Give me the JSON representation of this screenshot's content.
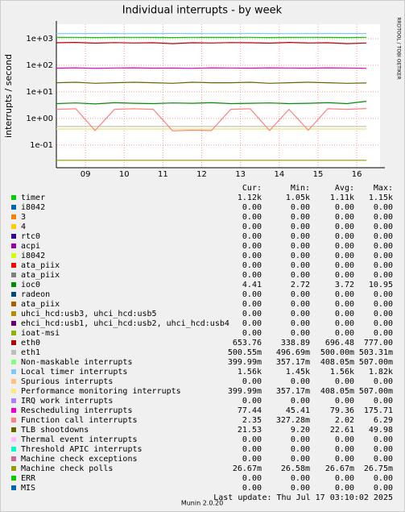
{
  "chart_data": {
    "type": "line",
    "title": "Individual interrupts - by week",
    "ylabel": "interrupts / second",
    "side_text": "RRDTOOL / TOBI OETIKER",
    "footer": "Munin 2.0.20",
    "last_update": "Last update:  Thu Jul 17 03:10:02 2025",
    "log_scale": true,
    "grid": true,
    "ylim": [
      0.014,
      3500
    ],
    "yticks": [
      {
        "value": 1000,
        "label": "1e+03"
      },
      {
        "value": 100,
        "label": "1e+02"
      },
      {
        "value": 10,
        "label": "1e+01"
      },
      {
        "value": 1,
        "label": "1e+00"
      },
      {
        "value": 0.1,
        "label": "1e-01"
      }
    ],
    "xlim": [
      8.25,
      16.6
    ],
    "xticks": [
      {
        "value": 9,
        "label": "09"
      },
      {
        "value": 10,
        "label": "10"
      },
      {
        "value": 11,
        "label": "11"
      },
      {
        "value": 12,
        "label": "12"
      },
      {
        "value": 13,
        "label": "13"
      },
      {
        "value": 14,
        "label": "14"
      },
      {
        "value": 15,
        "label": "15"
      },
      {
        "value": 16,
        "label": "16"
      }
    ],
    "x": [
      8.25,
      8.75,
      9.25,
      9.75,
      10.25,
      10.75,
      11.25,
      11.75,
      12.25,
      12.75,
      13.25,
      13.75,
      14.25,
      14.75,
      15.25,
      15.75,
      16.25
    ],
    "legend_columns": [
      "Cur:",
      "Min:",
      "Avg:",
      "Max:"
    ],
    "series": [
      {
        "name": "timer",
        "color": "#00cc00",
        "values": [
          1110,
          1120,
          1100,
          1110,
          1120,
          1110,
          1100,
          1120,
          1110,
          1110,
          1120,
          1100,
          1110,
          1120,
          1110,
          1100,
          1120
        ],
        "stats": [
          "1.12k",
          "1.05k",
          "1.11k",
          "1.15k"
        ]
      },
      {
        "name": "i8042",
        "color": "#0066b3",
        "stats": [
          "0.00",
          "0.00",
          "0.00",
          "0.00"
        ]
      },
      {
        "name": "3",
        "color": "#ff8000",
        "stats": [
          "0.00",
          "0.00",
          "0.00",
          "0.00"
        ]
      },
      {
        "name": "4",
        "color": "#ffcc00",
        "stats": [
          "0.00",
          "0.00",
          "0.00",
          "0.00"
        ]
      },
      {
        "name": "rtc0",
        "color": "#330099",
        "stats": [
          "0.00",
          "0.00",
          "0.00",
          "0.00"
        ]
      },
      {
        "name": "acpi",
        "color": "#990099",
        "stats": [
          "0.00",
          "0.00",
          "0.00",
          "0.00"
        ]
      },
      {
        "name": "i8042",
        "color": "#ccff00",
        "stats": [
          "0.00",
          "0.00",
          "0.00",
          "0.00"
        ]
      },
      {
        "name": "ata_piix",
        "color": "#ff0000",
        "stats": [
          "0.00",
          "0.00",
          "0.00",
          "0.00"
        ]
      },
      {
        "name": "ata_piix",
        "color": "#808080",
        "stats": [
          "0.00",
          "0.00",
          "0.00",
          "0.00"
        ]
      },
      {
        "name": "ioc0",
        "color": "#008f00",
        "values": [
          3.6,
          3.8,
          3.5,
          3.9,
          3.7,
          3.6,
          3.8,
          3.7,
          3.9,
          3.6,
          3.7,
          3.8,
          3.6,
          3.7,
          3.9,
          3.6,
          4.4
        ],
        "stats": [
          "4.41",
          "2.72",
          "3.72",
          "10.95"
        ]
      },
      {
        "name": "radeon",
        "color": "#00487d",
        "stats": [
          "0.00",
          "0.00",
          "0.00",
          "0.00"
        ]
      },
      {
        "name": "ata_piix",
        "color": "#b35a00",
        "stats": [
          "0.00",
          "0.00",
          "0.00",
          "0.00"
        ]
      },
      {
        "name": "uhci_hcd:usb3, uhci_hcd:usb5",
        "color": "#b38f00",
        "stats": [
          "0.00",
          "0.00",
          "0.00",
          "0.00"
        ]
      },
      {
        "name": "ehci_hcd:usb1, uhci_hcd:usb2, uhci_hcd:usb4",
        "color": "#6b006b",
        "stats": [
          "0.00",
          "0.00",
          "0.00",
          "0.00"
        ]
      },
      {
        "name": "ioat-msi",
        "color": "#8fb300",
        "stats": [
          "0.00",
          "0.00",
          "0.00",
          "0.00"
        ]
      },
      {
        "name": "eth0",
        "color": "#b30000",
        "values": [
          700,
          720,
          680,
          710,
          690,
          700,
          650,
          700,
          690,
          710,
          700,
          680,
          720,
          690,
          700,
          650,
          690
        ],
        "stats": [
          "653.76",
          "338.89",
          "696.48",
          "777.00"
        ]
      },
      {
        "name": "eth1",
        "color": "#bebebe",
        "values": [
          0.5,
          0.5,
          0.5,
          0.5,
          0.5,
          0.5,
          0.5,
          0.5,
          0.5,
          0.5,
          0.5,
          0.5,
          0.5,
          0.5,
          0.5,
          0.5,
          0.5
        ],
        "stats": [
          "500.55m",
          "496.69m",
          "500.00m",
          "503.31m"
        ]
      },
      {
        "name": "Non-maskable interrupts",
        "color": "#80ff80",
        "values": [
          0.4,
          0.4,
          0.4,
          0.4,
          0.4,
          0.4,
          0.4,
          0.4,
          0.4,
          0.4,
          0.4,
          0.4,
          0.4,
          0.4,
          0.4,
          0.4,
          0.4
        ],
        "stats": [
          "399.99m",
          "357.17m",
          "408.05m",
          "507.00m"
        ]
      },
      {
        "name": "Local timer interrupts",
        "color": "#80c9ff",
        "values": [
          1560,
          1550,
          1570,
          1560,
          1550,
          1560,
          1570,
          1560,
          1550,
          1560,
          1570,
          1560,
          1550,
          1560,
          1570,
          1560,
          1560
        ],
        "stats": [
          "1.56k",
          "1.45k",
          "1.56k",
          "1.82k"
        ]
      },
      {
        "name": "Spurious interrupts",
        "color": "#ffc080",
        "stats": [
          "0.00",
          "0.00",
          "0.00",
          "0.00"
        ]
      },
      {
        "name": "Performance monitoring interrupts",
        "color": "#ffe680",
        "values": [
          0.4,
          0.4,
          0.4,
          0.4,
          0.4,
          0.4,
          0.4,
          0.4,
          0.4,
          0.4,
          0.4,
          0.4,
          0.4,
          0.4,
          0.4,
          0.4,
          0.4
        ],
        "stats": [
          "399.99m",
          "357.17m",
          "408.05m",
          "507.00m"
        ]
      },
      {
        "name": "IRQ work interrupts",
        "color": "#aa80ff",
        "stats": [
          "0.00",
          "0.00",
          "0.00",
          "0.00"
        ]
      },
      {
        "name": "Rescheduling interrupts",
        "color": "#ee00cc",
        "values": [
          78,
          80,
          77,
          79,
          80,
          78,
          79,
          77,
          80,
          79,
          78,
          80,
          79,
          78,
          80,
          79,
          77
        ],
        "stats": [
          "77.44",
          "45.41",
          "79.36",
          "175.71"
        ]
      },
      {
        "name": "Function call interrupts",
        "color": "#ff8080",
        "values": [
          2.2,
          2.3,
          0.35,
          2.2,
          2.3,
          2.2,
          0.34,
          0.36,
          0.35,
          2.2,
          2.3,
          0.35,
          2.2,
          0.36,
          2.3,
          2.2,
          2.35
        ],
        "stats": [
          "2.35",
          "327.28m",
          "2.02",
          "6.29"
        ]
      },
      {
        "name": "TLB shootdowns",
        "color": "#666600",
        "values": [
          22,
          23,
          21,
          22,
          23,
          22,
          21,
          23,
          22,
          22,
          23,
          21,
          22,
          23,
          22,
          21,
          21.5
        ],
        "stats": [
          "21.53",
          "9.20",
          "22.61",
          "49.98"
        ]
      },
      {
        "name": "Thermal event interrupts",
        "color": "#ffbfff",
        "stats": [
          "0.00",
          "0.00",
          "0.00",
          "0.00"
        ]
      },
      {
        "name": "Threshold APIC interrupts",
        "color": "#00ffcc",
        "stats": [
          "0.00",
          "0.00",
          "0.00",
          "0.00"
        ]
      },
      {
        "name": "Machine check exceptions",
        "color": "#cc6699",
        "stats": [
          "0.00",
          "0.00",
          "0.00",
          "0.00"
        ]
      },
      {
        "name": "Machine check polls",
        "color": "#999900",
        "values": [
          0.0267,
          0.0267,
          0.0267,
          0.0267,
          0.0267,
          0.0267,
          0.0267,
          0.0267,
          0.0267,
          0.0267,
          0.0267,
          0.0267,
          0.0267,
          0.0267,
          0.0267,
          0.0267,
          0.0267
        ],
        "stats": [
          "26.67m",
          "26.58m",
          "26.67m",
          "26.75m"
        ]
      },
      {
        "name": "ERR",
        "color": "#00cc00",
        "stats": [
          "0.00",
          "0.00",
          "0.00",
          "0.00"
        ]
      },
      {
        "name": "MIS",
        "color": "#0066b3",
        "stats": [
          "0.00",
          "0.00",
          "0.00",
          "0.00"
        ]
      }
    ]
  }
}
